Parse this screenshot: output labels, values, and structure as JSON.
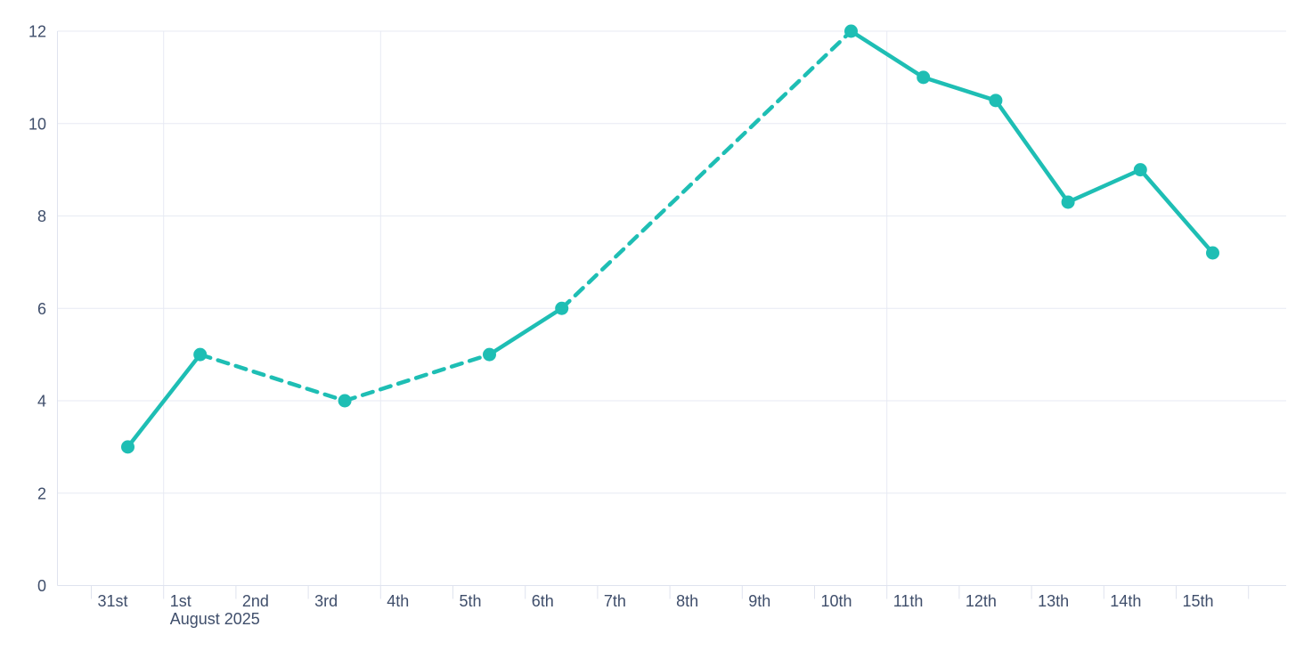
{
  "chart_data": {
    "type": "line",
    "title": "",
    "x_axis": {
      "unit": "day",
      "tick_labels": [
        "31st",
        "1st",
        "2nd",
        "3rd",
        "4th",
        "5th",
        "6th",
        "7th",
        "8th",
        "9th",
        "10th",
        "11th",
        "12th",
        "13th",
        "14th",
        "15th",
        ""
      ],
      "month_label": "August 2025",
      "month_label_under": "1st"
    },
    "y_axis": {
      "tick_labels": [
        "0",
        "2",
        "4",
        "6",
        "8",
        "10",
        "12"
      ],
      "range": [
        0,
        12
      ]
    },
    "grid": {
      "horizontal_values": [
        2,
        4,
        6,
        8,
        10,
        12
      ],
      "vertical_under_labels": [
        "1st",
        "4th",
        "11th"
      ]
    },
    "series": [
      {
        "name": "daily-series",
        "points": [
          {
            "day": "31st",
            "value": 3
          },
          {
            "day": "1st",
            "value": 5
          },
          {
            "day": "3rd",
            "value": 4
          },
          {
            "day": "5th",
            "value": 5
          },
          {
            "day": "6th",
            "value": 6
          },
          {
            "day": "10th",
            "value": 12
          },
          {
            "day": "11th",
            "value": 11
          },
          {
            "day": "12th",
            "value": 10.5
          },
          {
            "day": "13th",
            "value": 8.3
          },
          {
            "day": "14th",
            "value": 9
          },
          {
            "day": "15th",
            "value": 7.2
          }
        ],
        "segment_styles": [
          "solid",
          "dashed",
          "dashed",
          "solid",
          "dashed",
          "solid",
          "solid",
          "solid",
          "solid",
          "solid"
        ]
      }
    ],
    "legend": null,
    "colors": {
      "line": "#1ebeb4",
      "marker": "#1ebeb4",
      "grid": "#e7eaf3",
      "axis": "#dfe3ee",
      "label": "#3f4e6b",
      "background": "#ffffff"
    }
  }
}
